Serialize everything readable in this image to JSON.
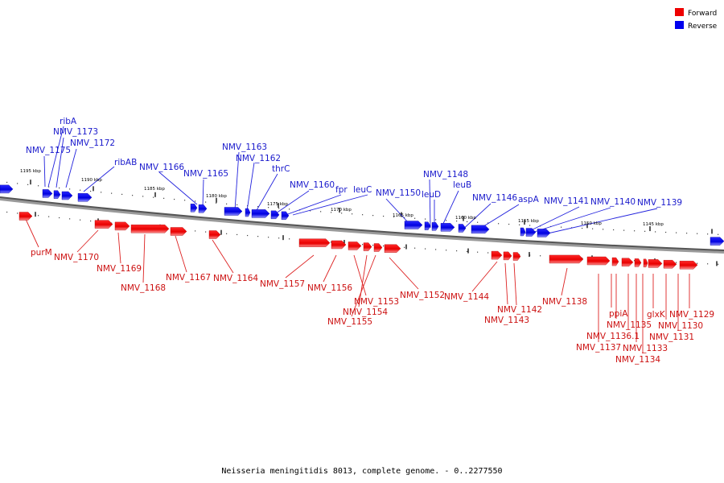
{
  "legend": {
    "forward_label": "Forward",
    "reverse_label": "Reverse",
    "forward_color": "#ee0000",
    "reverse_color": "#0000ee"
  },
  "caption": "Neisseria meningitidis 8013, complete genome. - 0..2277550",
  "ticks": [
    "1195 kbp",
    "1190 kbp",
    "1185 kbp",
    "1180 kbp",
    "1175 kbp",
    "1170 kbp",
    "1165 kbp",
    "1160 kbp",
    "1155 kbp",
    "1150 kbp",
    "1145 kbp"
  ],
  "forward_genes": [
    "purM",
    "NMV_1170",
    "NMV_1169",
    "NMV_1168",
    "NMV_1167",
    "NMV_1164",
    "NMV_1157",
    "NMV_1156",
    "NMV_1153",
    "NMV_1154",
    "NMV_1155",
    "NMV_1152",
    "NMV_1144",
    "NMV_1142",
    "NMV_1143",
    "NMV_1138",
    "ppiA",
    "NMV_1135",
    "NMV_1136.1",
    "NMV_1137",
    "NMV_1133",
    "NMV_1134",
    "glxK",
    "NMV_1129",
    "NMV_1130",
    "NMV_1131"
  ],
  "reverse_genes": [
    "ribA",
    "NMV_1173",
    "NMV_1175",
    "NMV_1172",
    "ribAB",
    "NMV_1166",
    "NMV_1165",
    "NMV_1163",
    "NMV_1162",
    "thrC",
    "NMV_1160",
    "fpr",
    "leuC",
    "NMV_1150",
    "NMV_1148",
    "leuD",
    "leuB",
    "NMV_1146",
    "aspA",
    "NMV_1141",
    "NMV_1140",
    "NMV_1139"
  ]
}
